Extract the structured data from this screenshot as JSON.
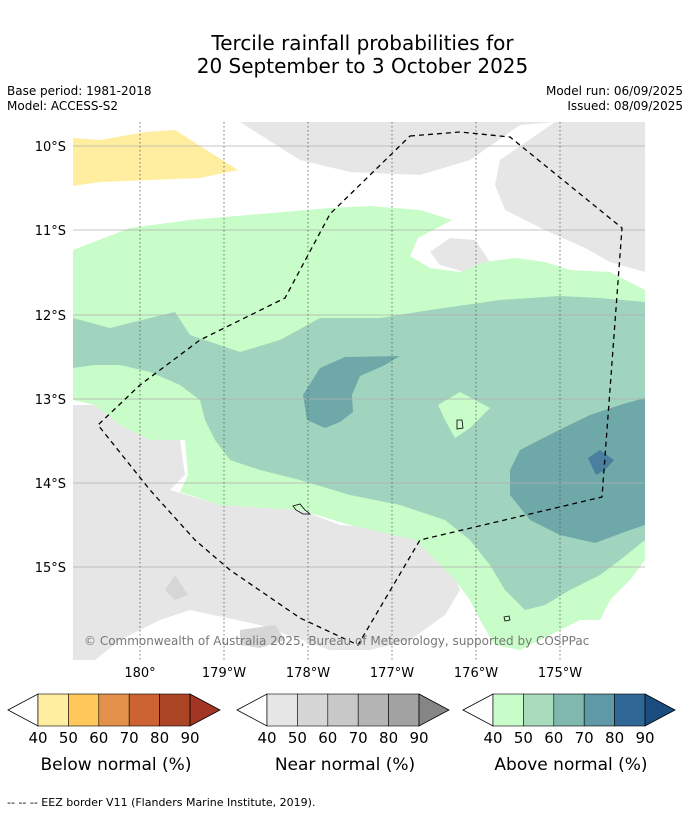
{
  "title_line1": "Tercile rainfall probabilities for",
  "title_line2": "20 September to 3 October 2025",
  "base_period": "Base period: 1981-2018",
  "model": "Model: ACCESS-S2",
  "model_run": "Model run: 06/09/2025",
  "issued": "Issued: 08/09/2025",
  "copyright": "© Commonwealth of Australia 2025, Bureau of Meteorology, supported by COSPPac",
  "lat_labels": [
    "10°S",
    "11°S",
    "12°S",
    "13°S",
    "14°S",
    "15°S"
  ],
  "lon_labels": [
    "180°",
    "179°W",
    "178°W",
    "177°W",
    "176°W",
    "175°W"
  ],
  "colorbars": [
    {
      "label": "Below normal (%)",
      "ticks": [
        "40",
        "50",
        "60",
        "70",
        "80",
        "90"
      ],
      "colors": [
        "#ffeea0",
        "#ffc75a",
        "#e2924a",
        "#cd6232",
        "#ac4526",
        "#a23523"
      ]
    },
    {
      "label": "Near normal (%)",
      "ticks": [
        "40",
        "50",
        "60",
        "70",
        "80",
        "90"
      ],
      "colors": [
        "#e6e6e6",
        "#d6d6d6",
        "#c8c8c8",
        "#b4b4b4",
        "#a2a2a2",
        "#858585"
      ]
    },
    {
      "label": "Above normal (%)",
      "ticks": [
        "40",
        "50",
        "60",
        "70",
        "80",
        "90"
      ],
      "colors": [
        "#c8fcc8",
        "#a8dcbc",
        "#80b8ae",
        "#5f98a6",
        "#2f6797",
        "#1a4c80"
      ]
    }
  ],
  "footnote": "-- -- -- EEZ border V11 (Flanders Marine Institute, 2019)."
}
